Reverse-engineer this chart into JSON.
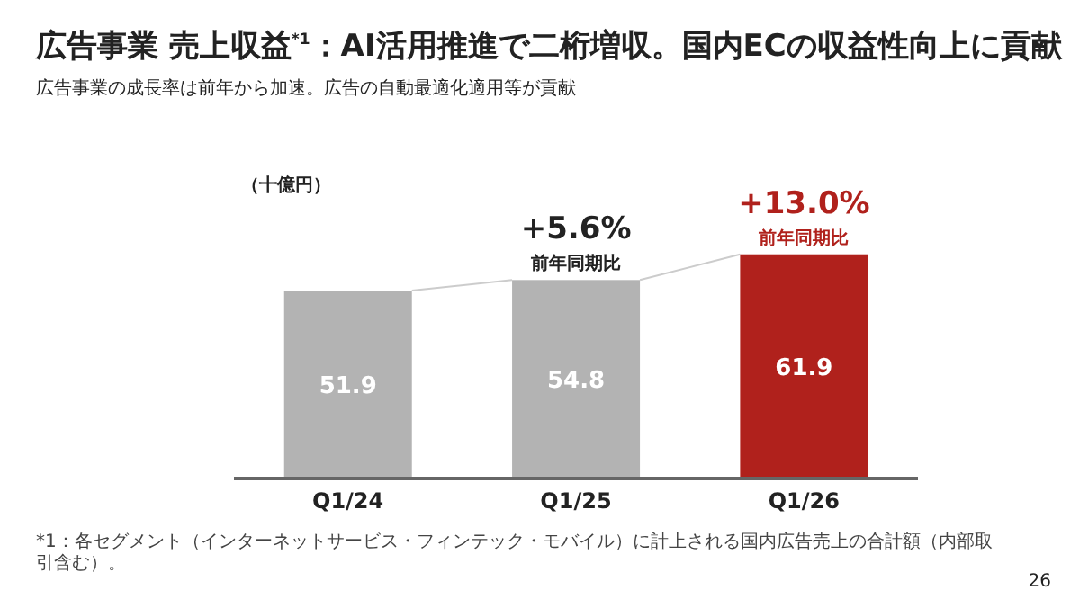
{
  "chart_data": {
    "type": "bar",
    "title": "広告事業 売上収益$^{*1}$：AI活用推進で二桁増収。国内ECの収益性向上に貢献",
    "subtitle": "広告事業の成長率は前年から加速。広告の自動最適化適用等が貢献",
    "ylabel": "（十億円）",
    "categories": [
      "Q1/24",
      "Q1/25",
      "Q1/26"
    ],
    "values": [
      51.9,
      54.8,
      61.9
    ],
    "colors": [
      "#b3b3b3",
      "#b3b3b3",
      "#b0211c"
    ],
    "data_labels": true,
    "annotations": [
      {
        "text": "+5.6%",
        "x": "Q1/25",
        "y": 54.8
      },
      {
        "text": "前年同期比",
        "x": "Q1/25",
        "y": 54.8
      },
      {
        "text": "+13.0%",
        "x": "Q1/26",
        "y": 61.9
      },
      {
        "text": "前年同期比",
        "x": "Q1/26",
        "y": 61.9
      },
      "*1：各セグメント（インターネットサービス・フィンテック・モバイル）に計上される国内広告売上の合計額（内部取引含む）。",
      "26"
    ]
  }
}
